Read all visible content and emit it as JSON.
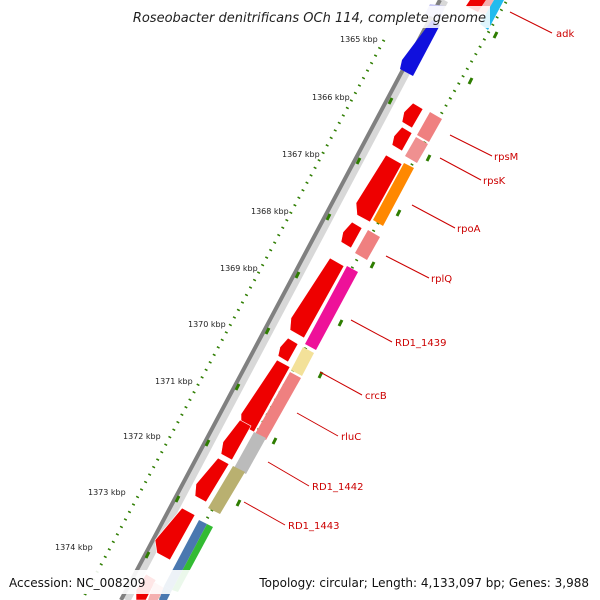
{
  "title": "Roseobacter denitrificans OCh 114, complete genome",
  "footer": {
    "accession": "Accession: NC_008209",
    "summary": "Topology: circular; Length: 4,133,097 bp; Genes: 3,988"
  },
  "kbp_ticks": [
    "1365 kbp",
    "1366 kbp",
    "1367 kbp",
    "1368 kbp",
    "1369 kbp",
    "1370 kbp",
    "1371 kbp",
    "1372 kbp",
    "1373 kbp",
    "1374 kbp"
  ],
  "gene_labels": [
    "adk",
    "rpsM",
    "rpsK",
    "rpoA",
    "rplQ",
    "RD1_1439",
    "crcB",
    "rluC",
    "RD1_1442",
    "RD1_1443"
  ],
  "colors": {
    "forward_gene": "#ee0000",
    "backbone": "#808080",
    "tick_dots": "#2e7d00",
    "label_red": "#cc0000",
    "blue_gene": "#1010dd",
    "cyan_gene": "#22bbee",
    "orange_gene": "#ff8800",
    "magenta_gene": "#ee1199",
    "yellow_gene": "#f3e199",
    "pink_gene": "#ef8080",
    "grey_gene": "#bbbbbb",
    "olive_gene": "#b9b070",
    "steel_gene": "#4a78b0",
    "green_gene": "#33bb33"
  }
}
